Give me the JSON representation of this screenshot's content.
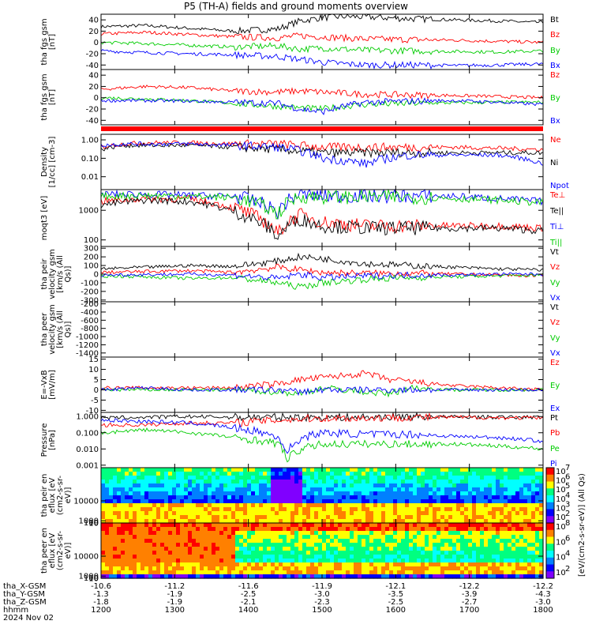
{
  "title": "P5 (TH-A) fields and ground moments overview",
  "x_axis": {
    "rows": [
      {
        "label": "tha_X-GSM",
        "values": [
          "-10.6",
          "-11.2",
          "-11.6",
          "-11.9",
          "-12.1",
          "-12.2",
          "-12.2"
        ]
      },
      {
        "label": "tha_Y-GSM",
        "values": [
          "-1.3",
          "-1.9",
          "-2.5",
          "-3.0",
          "-3.5",
          "-3.9",
          "-4.3"
        ]
      },
      {
        "label": "tha_Z-GSM",
        "values": [
          "-1.8",
          "-1.9",
          "-2.1",
          "-2.3",
          "-2.5",
          "-2.7",
          "-3.0"
        ]
      },
      {
        "label": "hhmm",
        "values": [
          "1200",
          "1300",
          "1400",
          "1500",
          "1600",
          "1700",
          "1800"
        ]
      }
    ],
    "date": "2024 Nov 02"
  },
  "colorbar": {
    "label": "[eV/(cm2-s-sr-eV)] (All Qs)",
    "ticks_top": [
      "10",
      "10",
      "10",
      "10",
      "10",
      "10"
    ],
    "ticks_top_exp": [
      "7",
      "6",
      "5",
      "4",
      "3",
      "2"
    ],
    "ticks_bottom": [
      "10",
      "10",
      "10",
      "10"
    ],
    "ticks_bottom_exp": [
      "8",
      "6",
      "4",
      "2"
    ],
    "colors": [
      "#ff0000",
      "#ff8000",
      "#ffff00",
      "#00ff80",
      "#00ffff",
      "#0080ff",
      "#0000ff",
      "#8000ff"
    ]
  },
  "chart_data": [
    {
      "type": "line",
      "ylabel": "tha fgs gsm [nT]",
      "yticks": [
        "40",
        "20",
        "0",
        "-20",
        "-40"
      ],
      "ylim": [
        -48,
        50
      ],
      "series": [
        {
          "name": "Bt",
          "color": "#000000",
          "x": [
            0,
            0.1,
            0.2,
            0.3,
            0.4,
            0.45,
            0.5,
            0.55,
            0.6,
            0.7,
            0.8,
            0.9,
            1.0
          ],
          "values": [
            28,
            30,
            25,
            20,
            24,
            38,
            44,
            46,
            45,
            42,
            40,
            38,
            35
          ]
        },
        {
          "name": "Bz",
          "color": "#ff0000",
          "x": [
            0,
            0.1,
            0.2,
            0.3,
            0.4,
            0.45,
            0.5,
            0.55,
            0.6,
            0.7,
            0.8,
            0.9,
            1.0
          ],
          "values": [
            15,
            18,
            14,
            10,
            8,
            12,
            10,
            8,
            6,
            5,
            4,
            2,
            0
          ]
        },
        {
          "name": "By",
          "color": "#00cc00",
          "x": [
            0,
            0.1,
            0.2,
            0.3,
            0.4,
            0.45,
            0.5,
            0.55,
            0.6,
            0.7,
            0.8,
            0.9,
            1.0
          ],
          "values": [
            0,
            -2,
            -5,
            -8,
            -6,
            -12,
            -10,
            -12,
            -14,
            -15,
            -16,
            -17,
            -15
          ]
        },
        {
          "name": "Bx",
          "color": "#0000ff",
          "x": [
            0,
            0.1,
            0.2,
            0.3,
            0.4,
            0.45,
            0.5,
            0.55,
            0.6,
            0.7,
            0.8,
            0.9,
            1.0
          ],
          "values": [
            -15,
            -18,
            -20,
            -22,
            -25,
            -30,
            -35,
            -38,
            -40,
            -40,
            -41,
            -40,
            -38
          ]
        }
      ]
    },
    {
      "type": "line",
      "ylabel": "tha fgs gsm [nT]",
      "yticks": [
        "40",
        "20",
        "0",
        "-20",
        "-40"
      ],
      "ylim": [
        -48,
        50
      ],
      "series": [
        {
          "name": "Bz",
          "color": "#ff0000",
          "x": [
            0,
            0.1,
            0.2,
            0.3,
            0.4,
            0.45,
            0.5,
            0.55,
            0.6,
            0.7,
            0.8,
            0.9,
            1.0
          ],
          "values": [
            15,
            20,
            18,
            12,
            10,
            12,
            10,
            8,
            6,
            5,
            4,
            2,
            0
          ]
        },
        {
          "name": "By",
          "color": "#00cc00",
          "x": [
            0,
            0.1,
            0.2,
            0.3,
            0.4,
            0.45,
            0.5,
            0.55,
            0.6,
            0.7,
            0.8,
            0.9,
            1.0
          ],
          "values": [
            0,
            -2,
            -5,
            -10,
            -15,
            -18,
            -20,
            -15,
            -12,
            -10,
            -9,
            -8,
            -8
          ]
        },
        {
          "name": "Bx",
          "color": "#0000ff",
          "x": [
            0,
            0.1,
            0.2,
            0.3,
            0.4,
            0.45,
            0.5,
            0.55,
            0.6,
            0.7,
            0.8,
            0.9,
            1.0
          ],
          "values": [
            -5,
            -5,
            -6,
            -8,
            -10,
            -20,
            -25,
            -15,
            -8,
            -6,
            -5,
            -8,
            -12
          ]
        }
      ]
    },
    {
      "type": "line",
      "ylabel": "Density [1/cc] [cm-3]",
      "log": true,
      "yticks": [
        "1.00",
        "0.10",
        "0.01"
      ],
      "ylim": [
        0.002,
        2
      ],
      "series": [
        {
          "name": "Ne",
          "color": "#ff0000",
          "x": [
            0,
            0.05,
            0.1,
            0.2,
            0.3,
            0.4,
            0.5,
            0.6,
            0.7,
            0.8,
            0.9,
            1.0
          ],
          "values": [
            0.4,
            0.6,
            0.7,
            0.7,
            0.6,
            0.6,
            0.4,
            0.4,
            0.4,
            0.4,
            0.35,
            0.3
          ]
        },
        {
          "name": "Ni",
          "color": "#000000",
          "x": [
            0,
            0.05,
            0.1,
            0.2,
            0.3,
            0.4,
            0.5,
            0.6,
            0.7,
            0.8,
            0.9,
            1.0
          ],
          "values": [
            0.3,
            0.5,
            0.5,
            0.5,
            0.4,
            0.3,
            0.2,
            0.2,
            0.2,
            0.2,
            0.2,
            0.2
          ]
        },
        {
          "name": "Npot",
          "color": "#0000ff",
          "x": [
            0,
            0.05,
            0.1,
            0.2,
            0.3,
            0.4,
            0.5,
            0.6,
            0.7,
            0.8,
            0.9,
            1.0
          ],
          "values": [
            0.5,
            0.6,
            0.6,
            0.6,
            0.5,
            0.4,
            0.1,
            0.05,
            0.15,
            0.15,
            0.15,
            0.05
          ]
        }
      ]
    },
    {
      "type": "line",
      "ylabel": "moqt3 [eV]",
      "log": true,
      "yticks": [
        "1000",
        "100"
      ],
      "ylim": [
        60,
        5000
      ],
      "series": [
        {
          "name": "Te⊥",
          "color": "#ff0000",
          "x": [
            0,
            0.1,
            0.2,
            0.3,
            0.35,
            0.4,
            0.45,
            0.5,
            0.6,
            0.7,
            0.8,
            0.9,
            1.0
          ],
          "values": [
            2000,
            2500,
            2400,
            1200,
            600,
            150,
            700,
            400,
            300,
            300,
            300,
            300,
            250
          ]
        },
        {
          "name": "Te||",
          "color": "#000000",
          "x": [
            0,
            0.1,
            0.2,
            0.3,
            0.35,
            0.4,
            0.45,
            0.5,
            0.6,
            0.7,
            0.8,
            0.9,
            1.0
          ],
          "values": [
            1500,
            2200,
            2000,
            900,
            450,
            120,
            500,
            300,
            250,
            250,
            250,
            250,
            200
          ]
        },
        {
          "name": "Ti⊥",
          "color": "#0000ff",
          "x": [
            0,
            0.1,
            0.2,
            0.3,
            0.35,
            0.4,
            0.45,
            0.5,
            0.6,
            0.7,
            0.8,
            0.9,
            1.0
          ],
          "values": [
            3500,
            3500,
            3200,
            3000,
            2000,
            800,
            3500,
            3000,
            3000,
            3000,
            3000,
            2500,
            2000
          ]
        },
        {
          "name": "Ti||",
          "color": "#00cc00",
          "x": [
            0,
            0.1,
            0.2,
            0.3,
            0.35,
            0.4,
            0.45,
            0.5,
            0.6,
            0.7,
            0.8,
            0.9,
            1.0
          ],
          "values": [
            3000,
            3200,
            3000,
            2700,
            1800,
            700,
            3000,
            2800,
            2800,
            2800,
            2500,
            2200,
            1800
          ]
        }
      ]
    },
    {
      "type": "line",
      "ylabel": "tha peir velocity gsm [km/s (All Qs)]",
      "yticks": [
        "300",
        "200",
        "100",
        "0",
        "-100",
        "-200",
        "-300"
      ],
      "ylim": [
        -320,
        320
      ],
      "series": [
        {
          "name": "Vt",
          "color": "#000000",
          "x": [
            0,
            0.1,
            0.2,
            0.3,
            0.4,
            0.45,
            0.5,
            0.6,
            0.7,
            0.8,
            0.9,
            1.0
          ],
          "values": [
            60,
            80,
            100,
            90,
            150,
            200,
            180,
            120,
            100,
            80,
            60,
            50
          ]
        },
        {
          "name": "Vz",
          "color": "#ff0000",
          "x": [
            0,
            0.1,
            0.2,
            0.3,
            0.4,
            0.45,
            0.5,
            0.6,
            0.7,
            0.8,
            0.9,
            1.0
          ],
          "values": [
            20,
            30,
            40,
            20,
            80,
            50,
            20,
            10,
            10,
            0,
            -10,
            -20
          ]
        },
        {
          "name": "Vy",
          "color": "#00cc00",
          "x": [
            0,
            0.1,
            0.2,
            0.3,
            0.4,
            0.45,
            0.5,
            0.6,
            0.7,
            0.8,
            0.9,
            1.0
          ],
          "values": [
            -20,
            -30,
            -50,
            -40,
            -100,
            -150,
            -100,
            -60,
            -40,
            -30,
            -20,
            -10
          ]
        },
        {
          "name": "Vx",
          "color": "#0000ff",
          "x": [
            0,
            0.1,
            0.2,
            0.3,
            0.4,
            0.45,
            0.5,
            0.6,
            0.7,
            0.8,
            0.9,
            1.0
          ],
          "values": [
            -10,
            -5,
            0,
            -10,
            -50,
            0,
            -40,
            -20,
            -10,
            -10,
            0,
            0
          ]
        }
      ]
    },
    {
      "type": "line",
      "ylabel": "tha peer velocity gsm [km/s (All Qs)]",
      "yticks": [
        "-200",
        "-400",
        "-600",
        "-800",
        "-1000",
        "-1200",
        "-1400"
      ],
      "ylim": [
        -1500,
        -150
      ],
      "series": [
        {
          "name": "Vt",
          "color": "#000000",
          "x": [],
          "values": []
        },
        {
          "name": "Vz",
          "color": "#ff0000",
          "x": [],
          "values": []
        },
        {
          "name": "Vy",
          "color": "#00cc00",
          "x": [],
          "values": []
        },
        {
          "name": "Vx",
          "color": "#0000ff",
          "x": [],
          "values": []
        }
      ]
    },
    {
      "type": "line",
      "ylabel": "E=-VxB [mV/m]",
      "yticks": [
        "15",
        "10",
        "5",
        "0",
        "-5",
        "-10"
      ],
      "ylim": [
        -11,
        16
      ],
      "series": [
        {
          "name": "Ez",
          "color": "#ff0000",
          "x": [
            0,
            0.1,
            0.2,
            0.3,
            0.4,
            0.45,
            0.5,
            0.6,
            0.65,
            0.7,
            0.8,
            0.9,
            1.0
          ],
          "values": [
            1,
            1,
            1,
            1,
            3,
            5,
            6,
            8,
            5,
            4,
            2,
            1,
            0
          ]
        },
        {
          "name": "Ey",
          "color": "#00cc00",
          "x": [
            0,
            0.1,
            0.2,
            0.3,
            0.4,
            0.45,
            0.5,
            0.6,
            0.65,
            0.7,
            0.8,
            0.9,
            1.0
          ],
          "values": [
            0,
            0,
            0,
            0,
            -1,
            -2,
            1,
            -1,
            -2,
            1,
            0,
            0,
            0
          ]
        },
        {
          "name": "Ex",
          "color": "#0000ff",
          "x": [
            0,
            0.1,
            0.2,
            0.3,
            0.4,
            0.45,
            0.5,
            0.6,
            0.65,
            0.7,
            0.8,
            0.9,
            1.0
          ],
          "values": [
            0,
            1,
            0,
            0,
            0,
            -1,
            0,
            0,
            0,
            0,
            0,
            0,
            0
          ]
        }
      ]
    },
    {
      "type": "line",
      "ylabel": "Pressure [nPa]",
      "log": true,
      "yticks": [
        "1.000",
        "0.100",
        "0.010",
        "0.001"
      ],
      "ylim": [
        0.0007,
        1.8
      ],
      "series": [
        {
          "name": "Pt",
          "color": "#000000",
          "x": [
            0,
            0.1,
            0.2,
            0.3,
            0.4,
            0.5,
            0.6,
            0.7,
            0.8,
            0.9,
            1.0
          ],
          "values": [
            0.8,
            0.9,
            1.0,
            0.9,
            0.9,
            0.9,
            0.9,
            1.0,
            0.95,
            0.9,
            0.9
          ]
        },
        {
          "name": "Pb",
          "color": "#ff0000",
          "x": [
            0,
            0.1,
            0.2,
            0.3,
            0.4,
            0.5,
            0.6,
            0.7,
            0.8,
            0.9,
            1.0
          ],
          "values": [
            0.3,
            0.3,
            0.4,
            0.4,
            0.6,
            0.8,
            0.8,
            0.9,
            0.9,
            0.85,
            0.8
          ]
        },
        {
          "name": "Pe",
          "color": "#00cc00",
          "x": [
            0,
            0.1,
            0.2,
            0.3,
            0.4,
            0.42,
            0.5,
            0.6,
            0.7,
            0.8,
            0.9,
            1.0
          ],
          "values": [
            0.1,
            0.15,
            0.1,
            0.05,
            0.02,
            0.0015,
            0.02,
            0.02,
            0.02,
            0.02,
            0.015,
            0.01
          ]
        },
        {
          "name": "Pi",
          "color": "#0000ff",
          "x": [
            0,
            0.1,
            0.2,
            0.3,
            0.4,
            0.42,
            0.5,
            0.6,
            0.7,
            0.8,
            0.9,
            1.0
          ],
          "values": [
            0.6,
            0.5,
            0.4,
            0.2,
            0.05,
            0.002,
            0.1,
            0.08,
            0.08,
            0.06,
            0.05,
            0.03
          ]
        }
      ]
    },
    {
      "type": "heatmap",
      "ylabel": "tha peir en eflux [eV (cm2-s-sr-eV)]",
      "yticks": [
        "10000",
        "1000",
        "100",
        "10"
      ],
      "ylim": [
        7,
        25000
      ]
    },
    {
      "type": "heatmap",
      "ylabel": "tha peer en eflux [eV (cm2-s-sr-eV)]",
      "yticks": [
        "10000",
        "1000",
        "100",
        "10"
      ],
      "ylim": [
        7,
        25000
      ]
    }
  ]
}
